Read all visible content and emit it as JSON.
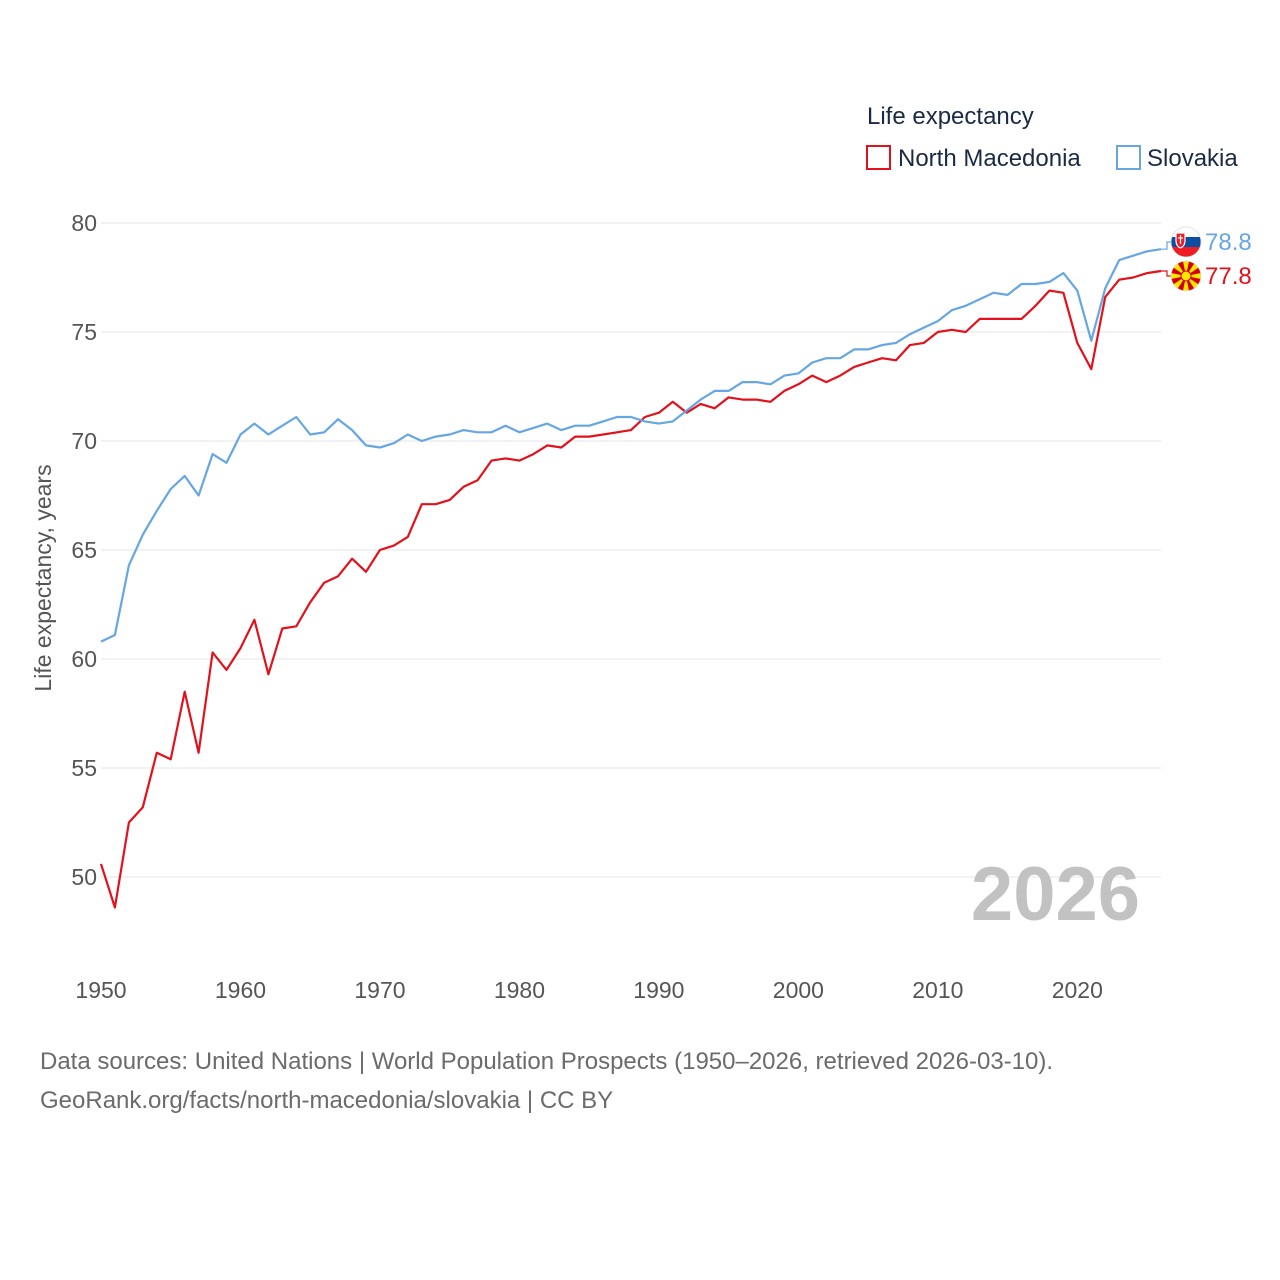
{
  "chart_data": {
    "type": "line",
    "title": "",
    "ylabel": "Life expectancy, years",
    "xlabel": "",
    "legend_title": "Life expectancy",
    "legend_position": "top-right",
    "grid": true,
    "xlim": [
      1950,
      2026
    ],
    "ylim": [
      47,
      81
    ],
    "yticks": [
      50,
      55,
      60,
      65,
      70,
      75,
      80
    ],
    "xticks": [
      1950,
      1960,
      1970,
      1980,
      1990,
      2000,
      2010,
      2020
    ],
    "year_watermark": "2026",
    "x": [
      1950,
      1951,
      1952,
      1953,
      1954,
      1955,
      1956,
      1957,
      1958,
      1959,
      1960,
      1961,
      1962,
      1963,
      1964,
      1965,
      1966,
      1967,
      1968,
      1969,
      1970,
      1971,
      1972,
      1973,
      1974,
      1975,
      1976,
      1977,
      1978,
      1979,
      1980,
      1981,
      1982,
      1983,
      1984,
      1985,
      1986,
      1987,
      1988,
      1989,
      1990,
      1991,
      1992,
      1993,
      1994,
      1995,
      1996,
      1997,
      1998,
      1999,
      2000,
      2001,
      2002,
      2003,
      2004,
      2005,
      2006,
      2007,
      2008,
      2009,
      2010,
      2011,
      2012,
      2013,
      2014,
      2015,
      2016,
      2017,
      2018,
      2019,
      2020,
      2021,
      2022,
      2023,
      2024,
      2025,
      2026
    ],
    "series": [
      {
        "name": "North Macedonia",
        "color": "#e3111b",
        "flag": "north-macedonia-flag-icon",
        "end_label": "77.8",
        "values": [
          50.6,
          48.6,
          52.5,
          53.2,
          55.7,
          55.4,
          58.5,
          55.7,
          60.3,
          59.5,
          60.5,
          61.8,
          59.3,
          61.4,
          61.5,
          62.6,
          63.5,
          63.8,
          64.6,
          64.0,
          65.0,
          65.2,
          65.6,
          67.1,
          67.1,
          67.3,
          67.9,
          68.2,
          69.1,
          69.2,
          69.1,
          69.4,
          69.8,
          69.7,
          70.2,
          70.2,
          70.3,
          70.4,
          70.5,
          71.1,
          71.3,
          71.8,
          71.3,
          71.7,
          71.5,
          72.0,
          71.9,
          71.9,
          71.8,
          72.3,
          72.6,
          73.0,
          72.7,
          73.0,
          73.4,
          73.6,
          73.8,
          73.7,
          74.4,
          74.5,
          75.0,
          75.1,
          75.0,
          75.6,
          75.6,
          75.6,
          75.6,
          76.2,
          76.9,
          76.8,
          74.5,
          73.3,
          76.6,
          77.4,
          77.5,
          77.7,
          77.8
        ]
      },
      {
        "name": "Slovakia",
        "color": "#65a6e3",
        "flag": "slovakia-flag-icon",
        "end_label": "78.8",
        "values": [
          60.8,
          61.1,
          64.3,
          65.7,
          66.8,
          67.8,
          68.4,
          67.5,
          69.4,
          69.0,
          70.3,
          70.8,
          70.3,
          70.7,
          71.1,
          70.3,
          70.4,
          71.0,
          70.5,
          69.8,
          69.7,
          69.9,
          70.3,
          70.0,
          70.2,
          70.3,
          70.5,
          70.4,
          70.4,
          70.7,
          70.4,
          70.6,
          70.8,
          70.5,
          70.7,
          70.7,
          70.9,
          71.1,
          71.1,
          70.9,
          70.8,
          70.9,
          71.4,
          71.9,
          72.3,
          72.3,
          72.7,
          72.7,
          72.6,
          73.0,
          73.1,
          73.6,
          73.8,
          73.8,
          74.2,
          74.2,
          74.4,
          74.5,
          74.9,
          75.2,
          75.5,
          76.0,
          76.2,
          76.5,
          76.8,
          76.7,
          77.2,
          77.2,
          77.3,
          77.7,
          76.9,
          74.6,
          77.0,
          78.3,
          78.5,
          78.7,
          78.8
        ]
      }
    ]
  },
  "footer": {
    "line1": "Data sources: United Nations | World Population Prospects (1950–2026, retrieved 2026-03-10).",
    "line2": "GeoRank.org/facts/north-macedonia/slovakia | CC BY"
  }
}
